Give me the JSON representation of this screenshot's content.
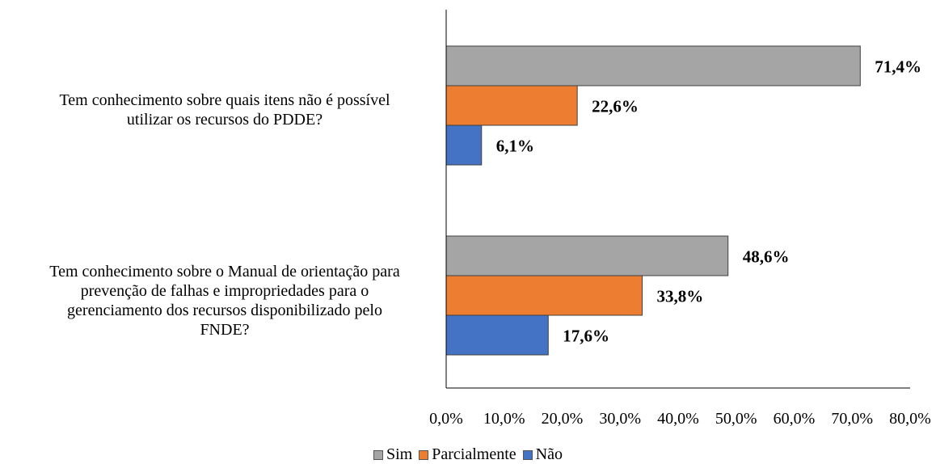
{
  "chart_data": {
    "type": "bar",
    "orientation": "horizontal",
    "categories": [
      "Tem conhecimento sobre quais itens não é possível utilizar os recursos do PDDE?",
      "Tem conhecimento sobre o Manual de orientação para prevenção de falhas e impropriedades para o gerenciamento dos recursos disponibilizado pelo FNDE?"
    ],
    "category_lines": [
      [
        "Tem conhecimento sobre quais itens não é possível",
        "utilizar os recursos do PDDE?"
      ],
      [
        "Tem conhecimento sobre o Manual de orientação para",
        "prevenção de falhas e impropriedades para o",
        "gerenciamento dos recursos disponibilizado pelo",
        "FNDE?"
      ]
    ],
    "series": [
      {
        "name": "Sim",
        "color": "#A5A5A5",
        "values": [
          71.4,
          48.6
        ],
        "labels": [
          "71,4%",
          "48,6%"
        ]
      },
      {
        "name": "Parcialmente",
        "color": "#ED7D31",
        "values": [
          22.6,
          33.8
        ],
        "labels": [
          "22,6%",
          "33,8%"
        ]
      },
      {
        "name": "Não",
        "color": "#4472C4",
        "values": [
          6.1,
          17.6
        ],
        "labels": [
          "6,1%",
          "17,6%"
        ]
      }
    ],
    "xlim": [
      0,
      80
    ],
    "xticks": [
      0,
      10,
      20,
      30,
      40,
      50,
      60,
      70,
      80
    ],
    "xtick_labels": [
      "0,0%",
      "10,0%",
      "20,0%",
      "30,0%",
      "40,0%",
      "50,0%",
      "60,0%",
      "70,0%",
      "80,0%"
    ],
    "grid": false,
    "legend_position": "bottom"
  }
}
